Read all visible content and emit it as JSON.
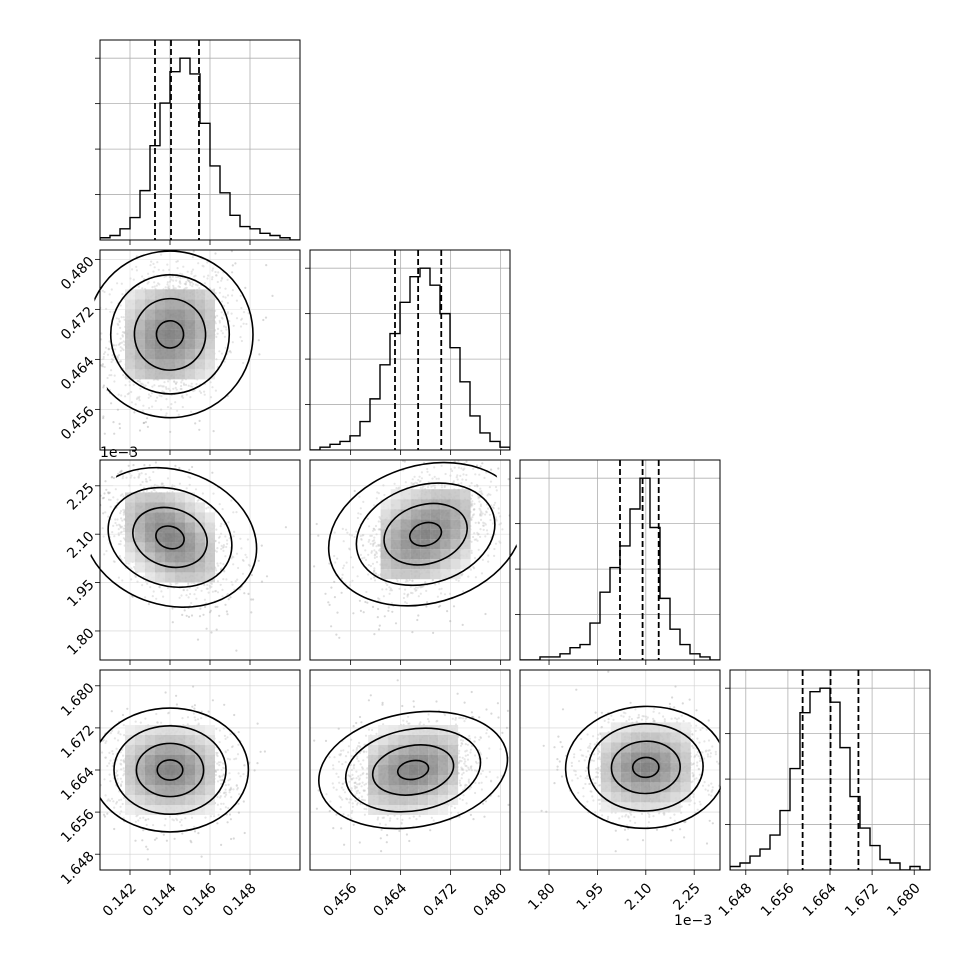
{
  "chart_data": {
    "type": "corner",
    "grid": true,
    "quantile_lines": "dashed",
    "parameters": [
      {
        "range": [
          0.1405,
          0.1505
        ],
        "ticks": [
          "0.142",
          "0.144",
          "0.146",
          "0.148"
        ],
        "tick_values": [
          0.142,
          0.144,
          0.146,
          0.148
        ],
        "quantiles": [
          0.14325,
          0.14405,
          0.14545
        ],
        "histogram": {
          "edges": [
            0.1405,
            0.151
          ],
          "counts": [
            1,
            2,
            5,
            10,
            22,
            42,
            61,
            75,
            81,
            74,
            52,
            33,
            21,
            11,
            6,
            5,
            3,
            2,
            1,
            0
          ]
        },
        "mode": 0.144
      },
      {
        "range": [
          0.4495,
          0.4815
        ],
        "ticks": [
          "0.456",
          "0.464",
          "0.472",
          "0.480"
        ],
        "tick_values": [
          0.456,
          0.464,
          0.472,
          0.48
        ],
        "quantiles": [
          0.4631,
          0.4668,
          0.4705
        ],
        "histogram": {
          "edges": [
            0.4495,
            0.4815
          ],
          "counts": [
            0,
            1,
            2,
            3,
            5,
            10,
            18,
            30,
            41,
            52,
            61,
            64,
            58,
            48,
            36,
            24,
            12,
            6,
            3,
            1
          ]
        },
        "mode": 0.4668
      },
      {
        "range": [
          1.71,
          2.33
        ],
        "ticks": [
          "1.80",
          "1.95",
          "2.10",
          "2.25"
        ],
        "tick_values": [
          1.8,
          1.95,
          2.1,
          2.25
        ],
        "quantiles": [
          2.02,
          2.09,
          2.14
        ],
        "histogram": {
          "edges": [
            1.71,
            2.33
          ],
          "counts": [
            0,
            0,
            1,
            1,
            2,
            4,
            5,
            12,
            22,
            30,
            37,
            49,
            59,
            43,
            20,
            10,
            5,
            2,
            1,
            0
          ]
        },
        "mode": 2.1
      },
      {
        "range": [
          1.645,
          1.683
        ],
        "ticks": [
          "1.648",
          "1.656",
          "1.664",
          "1.672",
          "1.680"
        ],
        "tick_values": [
          1.648,
          1.656,
          1.664,
          1.672,
          1.68
        ],
        "quantiles": [
          1.6588,
          1.6641,
          1.6694
        ],
        "histogram": {
          "edges": [
            1.645,
            1.683
          ],
          "counts": [
            1,
            2,
            4,
            6,
            10,
            17,
            29,
            45,
            51,
            52,
            48,
            35,
            21,
            12,
            7,
            3,
            2,
            0,
            1,
            0
          ]
        },
        "mode": 1.6643
      }
    ],
    "pairs": [
      {
        "row": 1,
        "col": 0,
        "center": [
          0.144,
          0.468
        ],
        "spread": [
          0.0016,
          0.0058
        ],
        "correlation": 0.2
      },
      {
        "row": 2,
        "col": 0,
        "center": [
          0.144,
          2.09
        ],
        "spread": [
          0.0016,
          0.1
        ],
        "correlation": -0.45
      },
      {
        "row": 2,
        "col": 1,
        "center": [
          0.468,
          2.1
        ],
        "spread": [
          0.0058,
          0.1
        ],
        "correlation": 0.4
      },
      {
        "row": 3,
        "col": 0,
        "center": [
          0.144,
          1.664
        ],
        "spread": [
          0.0016,
          0.0048
        ],
        "correlation": 0.0
      },
      {
        "row": 3,
        "col": 1,
        "center": [
          0.466,
          1.664
        ],
        "spread": [
          0.0058,
          0.0048
        ],
        "correlation": 0.25
      },
      {
        "row": 3,
        "col": 2,
        "center": [
          2.1,
          1.6645
        ],
        "spread": [
          0.1,
          0.0048
        ],
        "correlation": 0.05
      }
    ],
    "offset_labels": [
      {
        "text": "1e−3",
        "axis": "y",
        "row": 2
      },
      {
        "text": "1e−3",
        "axis": "x",
        "col": 2
      }
    ]
  }
}
